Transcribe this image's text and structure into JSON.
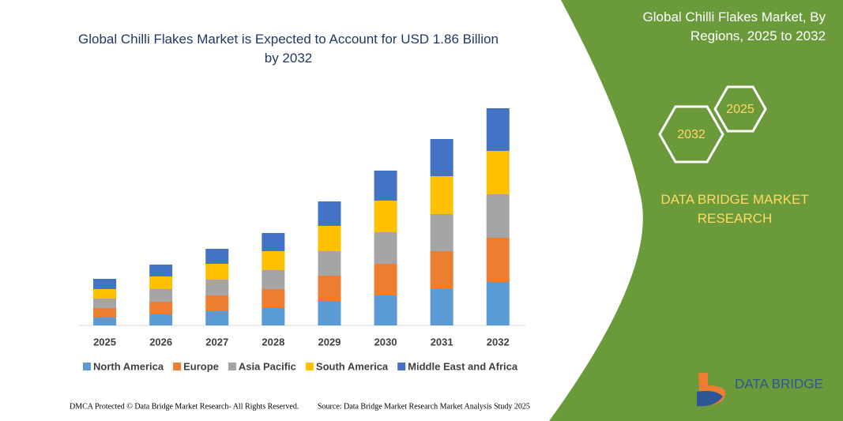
{
  "chart_data": {
    "type": "stacked-bar",
    "title": "Global Chilli Flakes Market is Expected to Account for USD 1.86 Billion by 2032",
    "categories": [
      "2025",
      "2026",
      "2027",
      "2028",
      "2029",
      "2030",
      "2031",
      "2032"
    ],
    "series": [
      {
        "name": "North America",
        "color": "#5b9bd5",
        "values": [
          10,
          14,
          18,
          22,
          31,
          38,
          46,
          55
        ]
      },
      {
        "name": "Europe",
        "color": "#ed7d31",
        "values": [
          12,
          16,
          20,
          24,
          32,
          40,
          48,
          56
        ]
      },
      {
        "name": "Asia Pacific",
        "color": "#a5a5a5",
        "values": [
          12,
          16,
          20,
          24,
          31,
          40,
          47,
          55
        ]
      },
      {
        "name": "South America",
        "color": "#ffc000",
        "values": [
          12,
          16,
          20,
          24,
          32,
          40,
          48,
          55
        ]
      },
      {
        "name": "Middle East and Africa",
        "color": "#4472c4",
        "values": [
          13,
          15,
          19,
          23,
          31,
          38,
          47,
          54
        ]
      }
    ],
    "legend": "bottom"
  },
  "panel": {
    "title": "Global Chilli Flakes Market, By Regions, 2025 to 2032",
    "hex_left": "2032",
    "hex_right": "2025",
    "brand": "DATA BRIDGE MARKET RESEARCH",
    "logo": "DATA BRIDGE"
  },
  "footer": {
    "left": "DMCA Protected © Data Bridge Market Research- All Rights Reserved.",
    "right": "Source: Data Bridge Market Research  Market Analysis Study 2025"
  }
}
